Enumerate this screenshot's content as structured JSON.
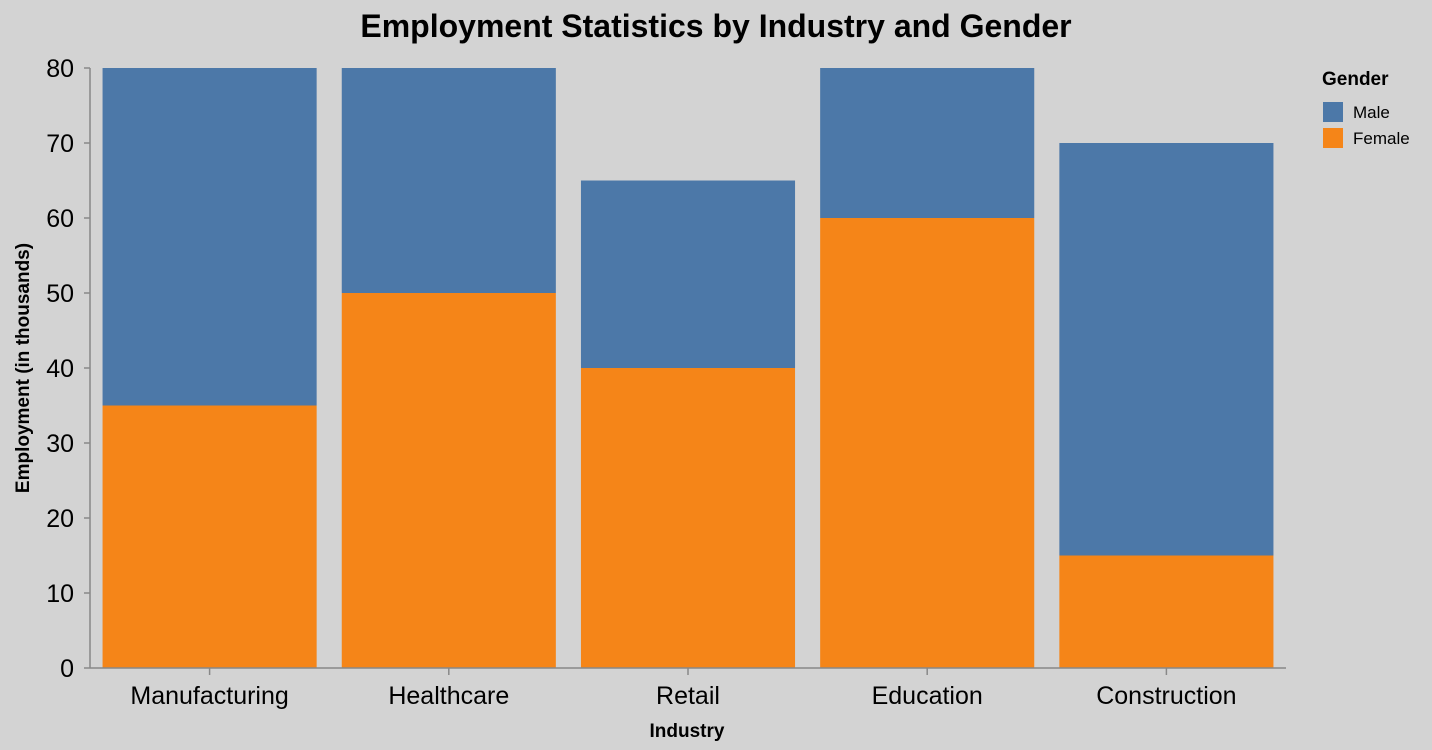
{
  "chart_data": {
    "type": "bar",
    "stacked": true,
    "title": "Employment Statistics by Industry and Gender",
    "xlabel": "Industry",
    "ylabel": "Employment (in thousands)",
    "ylim": [
      0,
      80
    ],
    "yticks": [
      0,
      10,
      20,
      30,
      40,
      50,
      60,
      70,
      80
    ],
    "categories": [
      "Manufacturing",
      "Healthcare",
      "Retail",
      "Education",
      "Construction"
    ],
    "series": [
      {
        "name": "Female",
        "values": [
          35,
          50,
          40,
          60,
          15
        ],
        "color": "#f58518"
      },
      {
        "name": "Male",
        "values": [
          45,
          30,
          25,
          20,
          55
        ],
        "color": "#4c78a8"
      }
    ],
    "legend": {
      "title": "Gender",
      "position": "top-right",
      "entries": [
        {
          "label": "Male",
          "color": "#4c78a8"
        },
        {
          "label": "Female",
          "color": "#f58518"
        }
      ]
    },
    "grid": false
  }
}
